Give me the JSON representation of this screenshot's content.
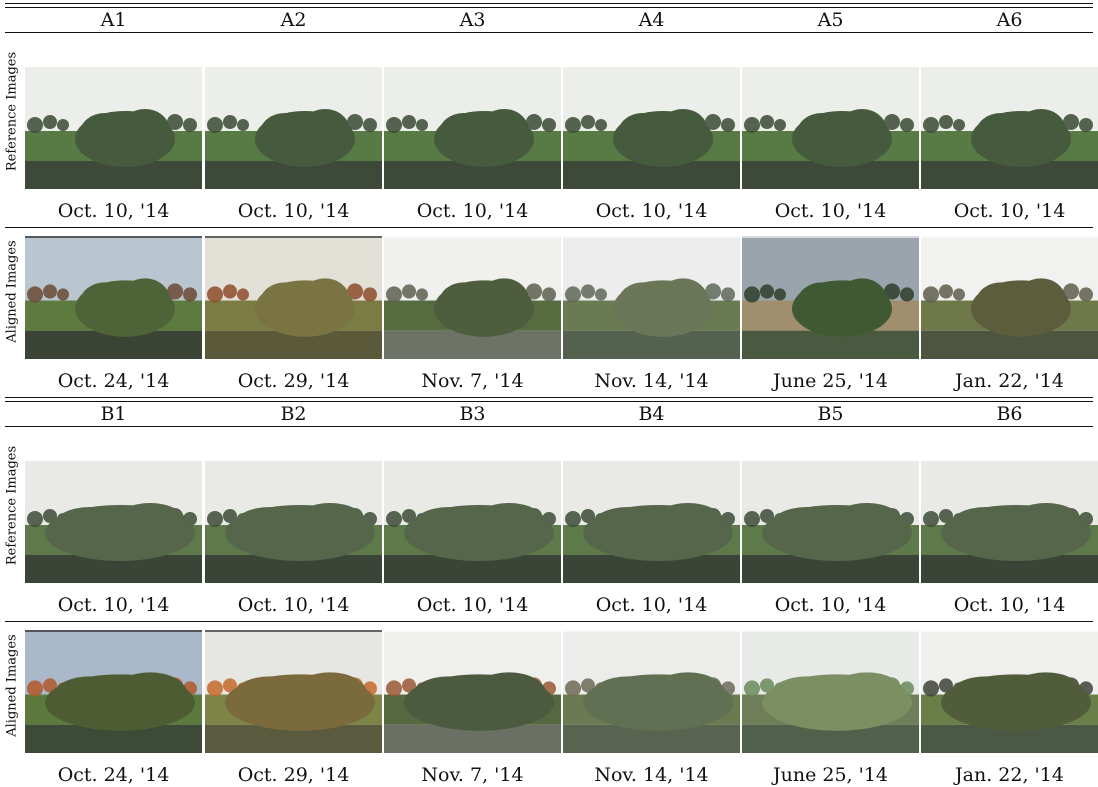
{
  "sections": [
    {
      "id": "A",
      "headers": [
        "A1",
        "A2",
        "A3",
        "A4",
        "A5",
        "A6"
      ],
      "row_labels": [
        "Reference Images",
        "Aligned Images"
      ],
      "reference_dates": [
        "Oct. 10, '14",
        "Oct. 10, '14",
        "Oct. 10, '14",
        "Oct. 10, '14",
        "Oct. 10, '14",
        "Oct. 10, '14"
      ],
      "aligned_dates": [
        "Oct. 24, '14",
        "Oct. 29, '14",
        "Nov. 7, '14",
        "Nov. 14, '14",
        "June 25, '14",
        "Jan. 22, '14"
      ]
    },
    {
      "id": "B",
      "headers": [
        "B1",
        "B2",
        "B3",
        "B4",
        "B5",
        "B6"
      ],
      "row_labels": [
        "Reference Images",
        "Aligned Images"
      ],
      "reference_dates": [
        "Oct. 10, '14",
        "Oct. 10, '14",
        "Oct. 10, '14",
        "Oct. 10, '14",
        "Oct. 10, '14",
        "Oct. 10, '14"
      ],
      "aligned_dates": [
        "Oct. 24, '14",
        "Oct. 29, '14",
        "Nov. 7, '14",
        "Nov. 14, '14",
        "June 25, '14",
        "Jan. 22, '14"
      ]
    }
  ]
}
